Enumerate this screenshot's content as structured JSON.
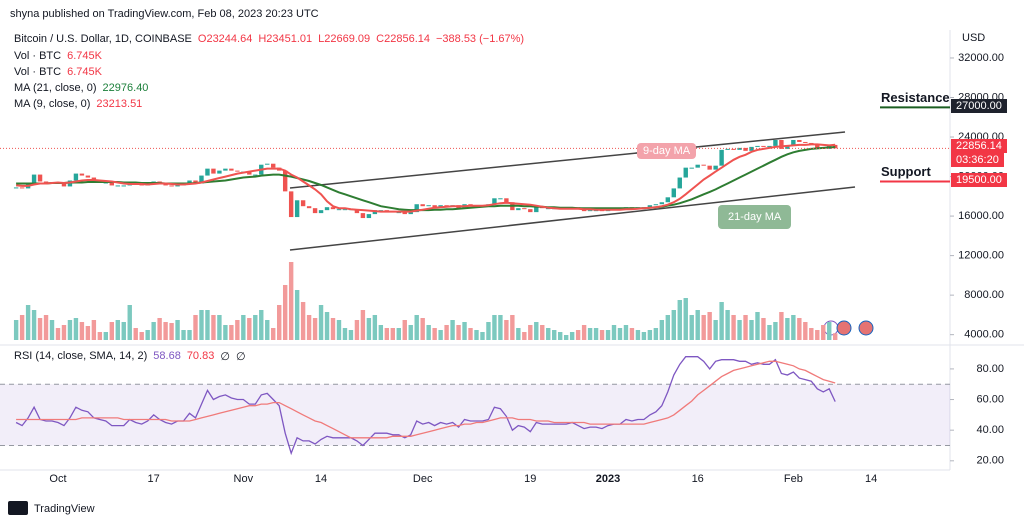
{
  "header": {
    "byline": "shyna published on TradingView.com, Feb 08, 2023 20:23 UTC",
    "currency": "USD",
    "footer": "TradingView"
  },
  "chart_data": [
    {
      "type": "candlestick",
      "title": "Bitcoin / U.S. Dollar, 1D, COINBASE",
      "ohlc_labels": [
        "O23244.64",
        "H23451.01",
        "L22669.09",
        "C22856.14",
        "−388.53 (−1.67%)"
      ],
      "color_up": "#26a69a",
      "color_down": "#ef5350",
      "ylim": [
        3460,
        34830
      ],
      "yticks": [
        {
          "value": 4000,
          "label": "4000.00"
        },
        {
          "value": 8000,
          "label": "8000.00"
        },
        {
          "value": 12000,
          "label": "12000.00"
        },
        {
          "value": 16000,
          "label": "16000.00"
        },
        {
          "value": 20000,
          "label": "20000.00"
        },
        {
          "value": 24000,
          "label": "24000.00"
        },
        {
          "value": 28000,
          "label": "28000.00"
        },
        {
          "value": 32000,
          "label": "32000.00"
        }
      ],
      "xlim": [
        -2.7,
        156.2
      ],
      "xticks": [
        {
          "value": 7,
          "label": "Oct"
        },
        {
          "value": 23,
          "label": "17"
        },
        {
          "value": 38,
          "label": "Nov"
        },
        {
          "value": 51,
          "label": "14"
        },
        {
          "value": 68,
          "label": "Dec"
        },
        {
          "value": 86,
          "label": "19"
        },
        {
          "value": 99,
          "label": "2023",
          "bold": true
        },
        {
          "value": 114,
          "label": "16"
        },
        {
          "value": 130,
          "label": "Feb"
        },
        {
          "value": 143,
          "label": "14"
        }
      ],
      "close": [
        18900,
        18800,
        19200,
        20200,
        19500,
        19400,
        19400,
        19300,
        19000,
        19600,
        20300,
        20100,
        19900,
        19500,
        19400,
        19400,
        19100,
        19100,
        19100,
        19400,
        19200,
        19100,
        19300,
        19500,
        19300,
        19100,
        19000,
        19200,
        19200,
        19600,
        19300,
        20100,
        20800,
        20300,
        20600,
        20800,
        20600,
        20500,
        20500,
        20200,
        20200,
        21200,
        21300,
        20900,
        20600,
        18500,
        15900,
        17600,
        17000,
        16800,
        16300,
        16600,
        16900,
        16700,
        16700,
        16700,
        16700,
        16300,
        15800,
        16200,
        16600,
        16600,
        16500,
        16400,
        16400,
        16200,
        16400,
        17200,
        17000,
        17100,
        16900,
        17100,
        17000,
        17100,
        16800,
        17200,
        17100,
        17100,
        17100,
        17200,
        17800,
        17800,
        17400,
        16600,
        16800,
        16700,
        16400,
        16900,
        16800,
        16800,
        16800,
        16800,
        16800,
        16900,
        16700,
        16500,
        16600,
        16600,
        16500,
        16600,
        16700,
        16700,
        16900,
        16800,
        16900,
        16900,
        17100,
        17200,
        17400,
        17900,
        18800,
        19900,
        20900,
        20900,
        21200,
        21100,
        20700,
        21100,
        22700,
        22800,
        22700,
        22900,
        22600,
        23000,
        23100,
        23000,
        23100,
        23700,
        22800,
        23100,
        23700,
        23500,
        23400,
        23300,
        22900,
        22800,
        23200,
        22856.14
      ],
      "last_price_label": "22856.14",
      "countdown": "03:36:20",
      "volume": {
        "name": "Vol · BTC",
        "value_label": "6.745K",
        "ylim": [
          0,
          100
        ],
        "color_up": "#7cc9bf",
        "color_down": "#f29a9a",
        "values": [
          20,
          25,
          35,
          30,
          22,
          25,
          20,
          12,
          15,
          20,
          22,
          18,
          14,
          20,
          8,
          8,
          18,
          20,
          18,
          35,
          12,
          8,
          10,
          18,
          22,
          18,
          17,
          20,
          10,
          10,
          25,
          30,
          30,
          25,
          25,
          15,
          15,
          20,
          25,
          22,
          25,
          30,
          20,
          12,
          35,
          55,
          78,
          50,
          38,
          25,
          22,
          35,
          28,
          22,
          20,
          12,
          10,
          20,
          30,
          22,
          25,
          15,
          12,
          12,
          12,
          20,
          15,
          25,
          22,
          15,
          12,
          10,
          15,
          20,
          15,
          18,
          12,
          10,
          8,
          18,
          25,
          25,
          20,
          25,
          12,
          8,
          15,
          18,
          15,
          12,
          10,
          8,
          5,
          8,
          10,
          15,
          12,
          12,
          10,
          10,
          15,
          12,
          15,
          12,
          10,
          8,
          10,
          12,
          20,
          25,
          30,
          40,
          42,
          25,
          30,
          25,
          28,
          20,
          38,
          30,
          25,
          20,
          25,
          20,
          28,
          22,
          15,
          18,
          28,
          22,
          25,
          22,
          18,
          12,
          10,
          15,
          18,
          6.745
        ]
      },
      "series": [
        {
          "name": "MA (21, close, 0)",
          "value_label": "22976.40",
          "color": "#2e7d32",
          "values": [
            19300,
            19300,
            19300,
            19300,
            19300,
            19300,
            19350,
            19350,
            19350,
            19400,
            19400,
            19400,
            19450,
            19450,
            19450,
            19450,
            19450,
            19450,
            19400,
            19400,
            19400,
            19350,
            19350,
            19350,
            19350,
            19300,
            19300,
            19300,
            19300,
            19300,
            19350,
            19400,
            19450,
            19500,
            19550,
            19600,
            19700,
            19800,
            19900,
            19950,
            20000,
            20100,
            20150,
            20200,
            20200,
            20100,
            20000,
            19850,
            19700,
            19550,
            19350,
            19150,
            18900,
            18650,
            18400,
            18200,
            18000,
            17800,
            17600,
            17400,
            17200,
            17000,
            16900,
            16800,
            16700,
            16650,
            16600,
            16600,
            16600,
            16600,
            16650,
            16650,
            16700,
            16700,
            16750,
            16800,
            16850,
            16900,
            16950,
            17000,
            17000,
            17050,
            17050,
            17050,
            17050,
            17000,
            17000,
            16950,
            16950,
            16900,
            16900,
            16850,
            16850,
            16850,
            16800,
            16800,
            16800,
            16800,
            16800,
            16800,
            16800,
            16800,
            16800,
            16800,
            16800,
            16800,
            16850,
            16900,
            16950,
            17050,
            17150,
            17300,
            17500,
            17700,
            17950,
            18200,
            18450,
            18700,
            19000,
            19300,
            19600,
            19900,
            20200,
            20500,
            20800,
            21100,
            21400,
            21700,
            22000,
            22250,
            22450,
            22600,
            22700,
            22800,
            22850,
            22900,
            22950,
            22976.4
          ]
        },
        {
          "name": "MA (9, close, 0)",
          "value_label": "23213.51",
          "color": "#ef5350",
          "values": [
            19100,
            19050,
            19050,
            19200,
            19300,
            19300,
            19350,
            19400,
            19350,
            19400,
            19500,
            19600,
            19650,
            19650,
            19600,
            19550,
            19500,
            19400,
            19300,
            19250,
            19250,
            19250,
            19200,
            19250,
            19300,
            19300,
            19250,
            19200,
            19200,
            19250,
            19300,
            19400,
            19550,
            19700,
            19850,
            20000,
            20150,
            20300,
            20400,
            20500,
            20600,
            20700,
            20800,
            20800,
            20800,
            20600,
            20200,
            19900,
            19500,
            19100,
            18700,
            18200,
            17500,
            17000,
            16800,
            16800,
            16700,
            16650,
            16600,
            16550,
            16500,
            16450,
            16450,
            16450,
            16450,
            16450,
            16450,
            16550,
            16650,
            16750,
            16850,
            16900,
            16950,
            17000,
            17000,
            17000,
            17050,
            17050,
            17050,
            17100,
            17200,
            17300,
            17350,
            17300,
            17250,
            17200,
            17150,
            17050,
            16950,
            16850,
            16800,
            16750,
            16750,
            16750,
            16750,
            16700,
            16700,
            16650,
            16650,
            16650,
            16650,
            16650,
            16700,
            16700,
            16750,
            16800,
            16850,
            16900,
            17000,
            17150,
            17400,
            17750,
            18200,
            18700,
            19200,
            19700,
            20100,
            20500,
            20900,
            21300,
            21700,
            22000,
            22200,
            22500,
            22700,
            22800,
            22900,
            23000,
            23050,
            23100,
            23150,
            23200,
            23200,
            23250,
            23250,
            23200,
            23150,
            23213.51
          ]
        }
      ],
      "annotations": {
        "ma9": "9-day MA",
        "ma21": "21-day MA",
        "resistance": {
          "text": "Resistance",
          "value": 27000,
          "label": "27000.00",
          "color": "#d32f2f"
        },
        "support": {
          "text": "Support",
          "value": 19500,
          "label": "19500.00",
          "color": "#1b7f3a"
        }
      }
    },
    {
      "type": "line",
      "title": "RSI (14, close, SMA, 14, 2)",
      "legend_values": [
        "58.68",
        "70.83",
        "∅",
        "∅"
      ],
      "ylim": [
        14,
        93
      ],
      "yticks": [
        {
          "value": 20,
          "label": "20.00"
        },
        {
          "value": 40,
          "label": "40.00"
        },
        {
          "value": 60,
          "label": "60.00"
        },
        {
          "value": 80,
          "label": "80.00"
        }
      ],
      "bands": [
        30,
        70
      ],
      "band_color": "rgba(126,87,194,0.1)",
      "series": [
        {
          "color": "#7e57c2",
          "values": [
            45,
            43,
            48,
            55,
            47,
            46,
            46,
            45,
            43,
            48,
            55,
            53,
            52,
            48,
            47,
            46,
            43,
            43,
            43,
            47,
            45,
            44,
            46,
            50,
            47,
            45,
            44,
            46,
            46,
            51,
            48,
            57,
            66,
            60,
            62,
            63,
            61,
            60,
            60,
            57,
            57,
            63,
            64,
            60,
            56,
            38,
            25,
            35,
            33,
            33,
            31,
            34,
            36,
            35,
            35,
            35,
            35,
            33,
            30,
            34,
            38,
            38,
            38,
            37,
            37,
            35,
            37,
            46,
            44,
            45,
            43,
            45,
            44,
            45,
            42,
            47,
            46,
            46,
            46,
            47,
            55,
            54,
            49,
            40,
            43,
            42,
            39,
            45,
            44,
            44,
            44,
            44,
            44,
            45,
            43,
            41,
            42,
            42,
            41,
            43,
            44,
            44,
            47,
            46,
            47,
            47,
            50,
            52,
            56,
            65,
            76,
            83,
            88,
            88,
            88,
            85,
            80,
            85,
            86,
            86,
            86,
            85,
            85,
            83,
            84,
            83,
            83,
            86,
            77,
            76,
            78,
            74,
            73,
            72,
            67,
            65,
            67,
            58.68
          ]
        },
        {
          "color": "#f07a7a",
          "values": [
            47,
            47,
            47,
            47,
            47,
            47,
            47,
            47,
            47,
            47,
            47,
            48,
            48,
            48,
            48,
            48,
            48,
            48,
            47,
            47,
            47,
            47,
            47,
            47,
            47,
            47,
            46,
            46,
            46,
            46,
            47,
            48,
            49,
            50,
            51,
            52,
            53,
            54,
            55,
            56,
            56,
            57,
            57,
            58,
            58,
            56,
            54,
            52,
            50,
            48,
            46,
            45,
            43,
            41,
            39,
            37,
            35,
            35,
            35,
            35,
            35,
            35,
            35,
            36,
            36,
            36,
            36,
            37,
            38,
            39,
            40,
            41,
            42,
            43,
            43,
            44,
            44,
            45,
            45,
            46,
            47,
            48,
            48,
            48,
            47,
            47,
            47,
            46,
            46,
            46,
            45,
            45,
            45,
            45,
            45,
            45,
            44,
            44,
            44,
            44,
            44,
            44,
            44,
            44,
            44,
            44,
            45,
            46,
            47,
            48,
            50,
            53,
            56,
            59,
            63,
            66,
            69,
            72,
            75,
            77,
            79,
            80,
            81,
            82,
            83,
            84,
            85,
            85,
            84,
            83,
            82,
            80,
            79,
            77,
            75,
            73,
            72,
            70.83
          ]
        }
      ]
    }
  ]
}
